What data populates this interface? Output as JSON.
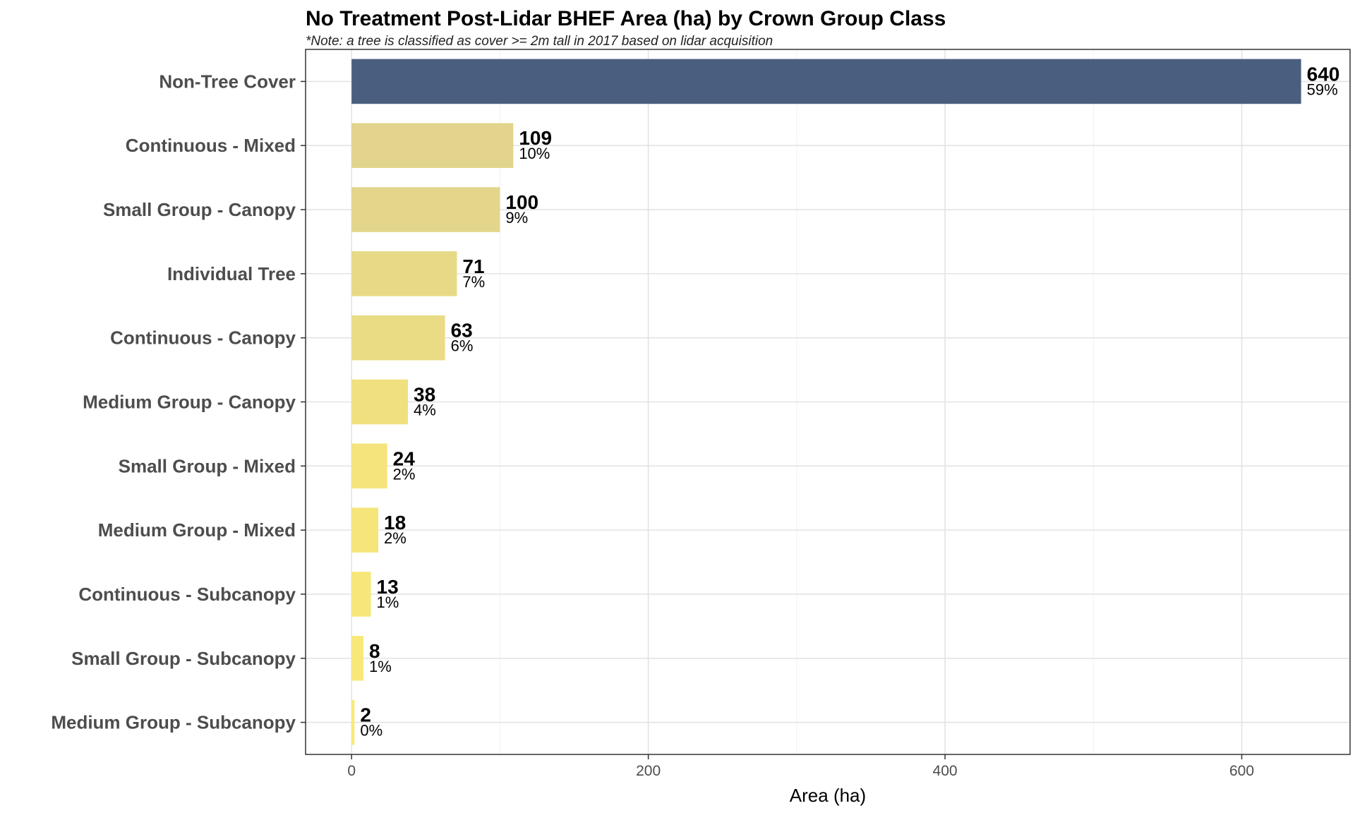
{
  "chart_data": {
    "type": "bar",
    "orientation": "horizontal",
    "title": "No Treatment Post-Lidar BHEF Area (ha) by Crown Group Class",
    "subtitle": "*Note: a tree is classified as cover >= 2m tall in 2017 based on lidar acquisition",
    "xlabel": "Area (ha)",
    "ylabel": "",
    "xlim": [
      -31,
      673
    ],
    "xticks": [
      0,
      200,
      400,
      600
    ],
    "grid": true,
    "legend": "none",
    "categories": [
      "Non-Tree Cover",
      "Continuous - Mixed",
      "Small Group - Canopy",
      "Individual Tree",
      "Continuous - Canopy",
      "Medium Group - Canopy",
      "Small Group - Mixed",
      "Medium Group - Mixed",
      "Continuous - Subcanopy",
      "Small Group - Subcanopy",
      "Medium Group - Subcanopy"
    ],
    "values": [
      640,
      109,
      100,
      71,
      63,
      38,
      24,
      18,
      13,
      8,
      2
    ],
    "value_labels": [
      "640",
      "109",
      "100",
      "71",
      "63",
      "38",
      "24",
      "18",
      "13",
      "8",
      "2"
    ],
    "percent_labels": [
      "59%",
      "10%",
      "9%",
      "7%",
      "6%",
      "4%",
      "2%",
      "2%",
      "1%",
      "1%",
      "0%"
    ],
    "colors": [
      "#4a5f80",
      "#e2d48c",
      "#e3d68b",
      "#e7da87",
      "#e9dc84",
      "#f0e07f",
      "#f4e47b",
      "#f5e57b",
      "#f7e77a",
      "#f8e879",
      "#f9e978"
    ]
  }
}
